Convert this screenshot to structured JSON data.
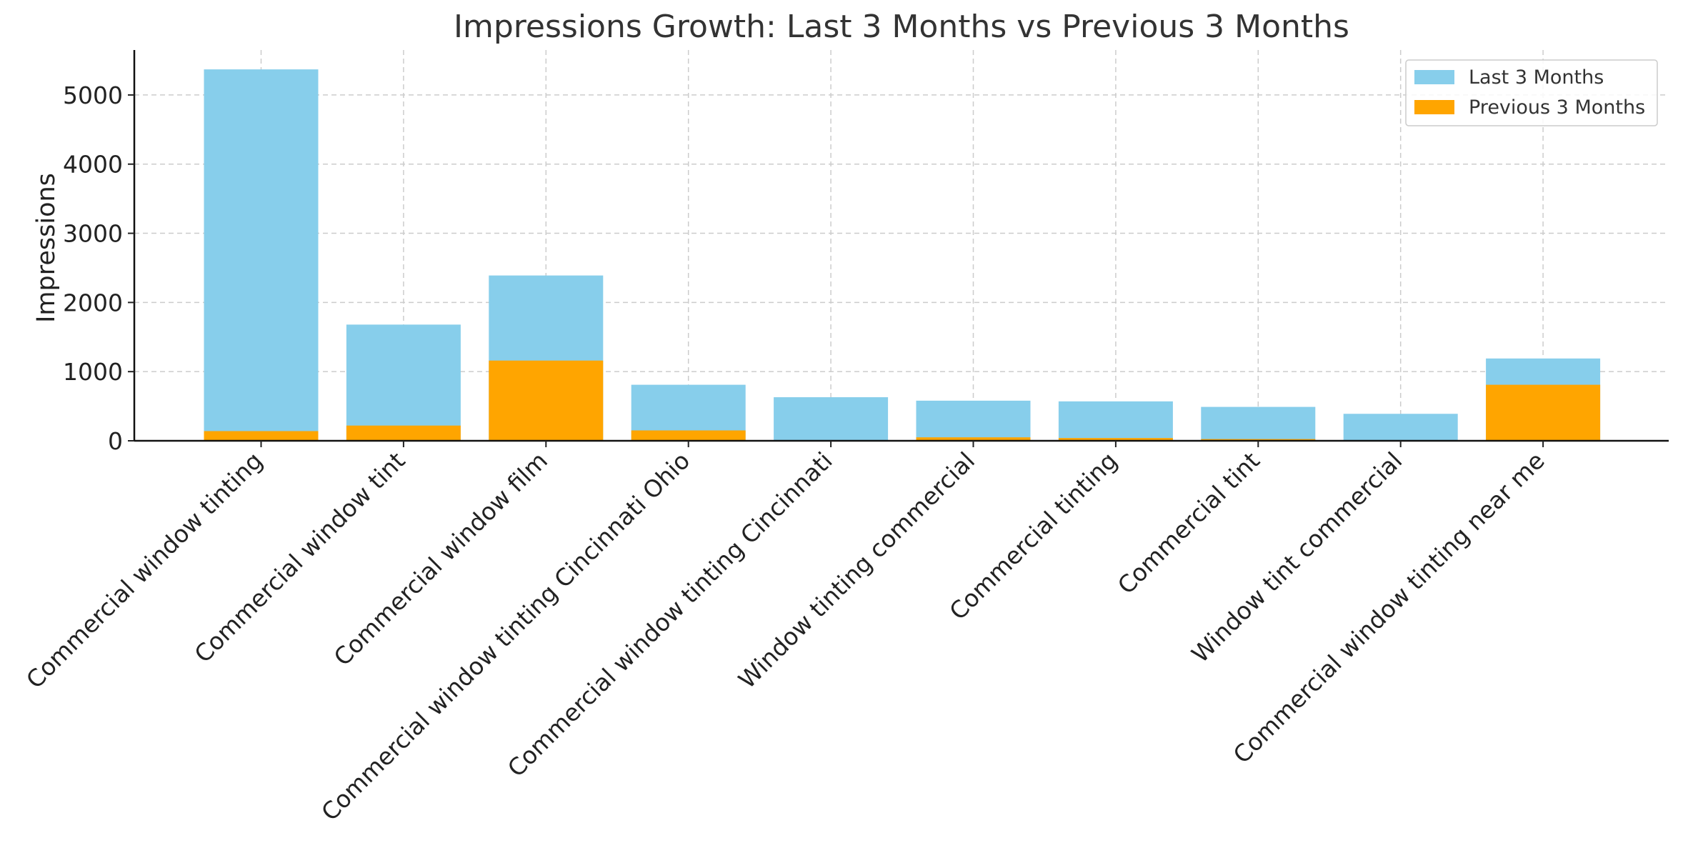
{
  "chart_data": {
    "type": "bar",
    "title": "Impressions Growth: Last 3 Months vs Previous 3 Months",
    "xlabel": "",
    "ylabel": "Impressions",
    "ylim": [
      0,
      5650
    ],
    "yticks": [
      0,
      1000,
      2000,
      3000,
      4000,
      5000
    ],
    "grid": true,
    "legend_position": "top-right",
    "categories": [
      "Commercial window tinting",
      "Commercial window tint",
      "Commercial window film",
      "Commercial window tinting Cincinnati Ohio",
      "Commercial window tinting Cincinnati",
      "Window tinting commercial",
      "Commercial tinting",
      "Commercial tint",
      "Window tint commercial",
      "Commercial window tinting near me"
    ],
    "series": [
      {
        "name": "Last 3 Months",
        "color": "#87ceeb",
        "values": [
          5370,
          1680,
          2390,
          810,
          630,
          580,
          570,
          490,
          390,
          1190
        ]
      },
      {
        "name": "Previous 3 Months",
        "color": "#ffa500",
        "values": [
          140,
          220,
          1160,
          150,
          5,
          50,
          40,
          25,
          10,
          810
        ]
      }
    ]
  }
}
